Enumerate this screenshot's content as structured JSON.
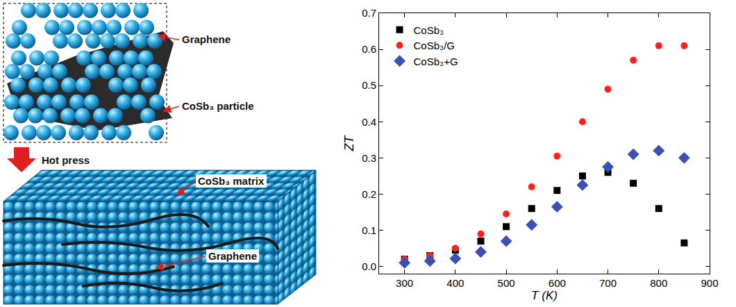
{
  "diagram": {
    "before": {
      "labels": [
        "Graphene",
        "CoSb₃ particle"
      ]
    },
    "step": "Hot press",
    "after": {
      "labels": [
        "CoSb₃ matrix",
        "Graphene"
      ]
    }
  },
  "chart_data": {
    "type": "scatter",
    "x": [
      300,
      350,
      400,
      450,
      500,
      550,
      600,
      650,
      700,
      750,
      800,
      850
    ],
    "series": [
      {
        "name": "CoSb₃",
        "color": "#000000",
        "marker": "square",
        "values": [
          0.02,
          0.03,
          0.045,
          0.07,
          0.11,
          0.16,
          0.21,
          0.25,
          0.26,
          0.23,
          0.16,
          0.065
        ]
      },
      {
        "name": "CoSb₃/G",
        "color": "#ff2020",
        "marker": "circle",
        "values": [
          0.02,
          0.03,
          0.05,
          0.09,
          0.145,
          0.22,
          0.305,
          0.4,
          0.49,
          0.57,
          0.61,
          0.61
        ]
      },
      {
        "name": "CoSb₃+G",
        "color": "#3a50b4",
        "marker": "diamond",
        "values": [
          0.01,
          0.015,
          0.022,
          0.04,
          0.07,
          0.115,
          0.165,
          0.225,
          0.275,
          0.31,
          0.32,
          0.3
        ]
      }
    ],
    "x_label": "T (K)",
    "y_label": "ZT",
    "xlim": [
      250,
      900
    ],
    "ylim": [
      -0.02,
      0.7
    ],
    "xticks": [
      300,
      400,
      500,
      600,
      700,
      800,
      900
    ],
    "yticks": [
      {
        "value": 0,
        "label": "0.0"
      },
      0.1,
      0.2,
      0.3,
      0.4,
      0.5,
      0.6,
      0.7
    ],
    "legend": "upper left"
  }
}
